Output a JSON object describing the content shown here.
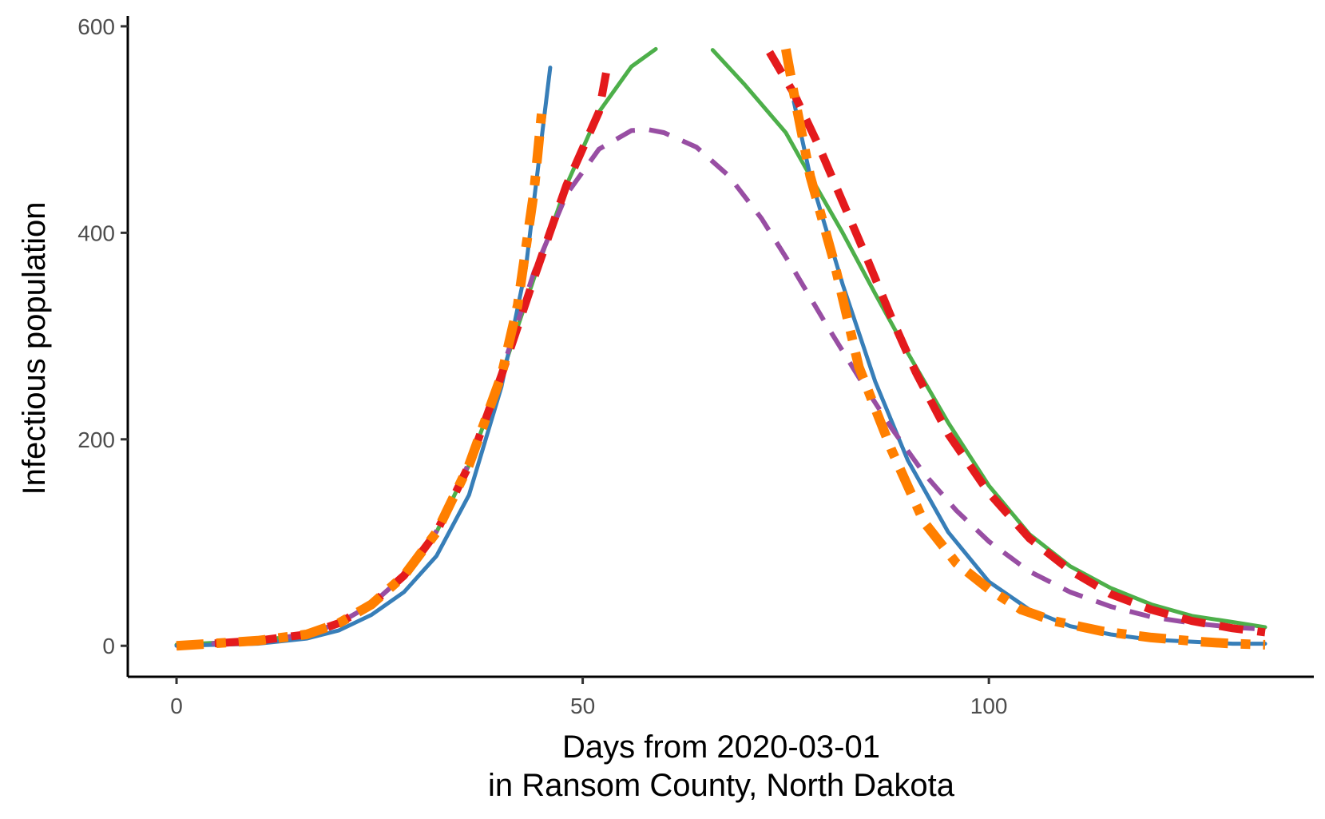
{
  "chart_data": {
    "type": "line",
    "title": "",
    "xlabel_lines": [
      "Days from 2020-03-01",
      "in Ransom County, North Dakota"
    ],
    "ylabel": "Infectious population",
    "xlim": [
      -6,
      140
    ],
    "ylim": [
      -30,
      610
    ],
    "x_ticks": [
      0,
      50,
      100
    ],
    "y_ticks": [
      0,
      200,
      400,
      600
    ],
    "grid": false,
    "legend": "none",
    "series": [
      {
        "color": "#4daf4a",
        "style": "solid",
        "width": 5,
        "segments": [
          [
            [
              0,
              1
            ],
            [
              10,
              5
            ],
            [
              16,
              11
            ],
            [
              20,
              22
            ],
            [
              24,
              40
            ],
            [
              28,
              68
            ],
            [
              32,
              110
            ],
            [
              36,
              175
            ],
            [
              40,
              262
            ],
            [
              44,
              356
            ],
            [
              48,
              446
            ],
            [
              52,
              517
            ],
            [
              56,
              561
            ],
            [
              59,
              578
            ]
          ],
          [
            [
              66,
              577
            ],
            [
              70,
              543
            ],
            [
              75,
              497
            ],
            [
              78,
              455
            ],
            [
              82,
              400
            ],
            [
              86,
              341
            ],
            [
              90,
              284
            ],
            [
              95,
              216
            ],
            [
              100,
              155
            ],
            [
              105,
              108
            ],
            [
              110,
              77
            ],
            [
              115,
              56
            ],
            [
              120,
              40
            ],
            [
              125,
              29
            ],
            [
              130,
              23
            ],
            [
              134,
              18
            ]
          ]
        ]
      },
      {
        "color": "#377eb8",
        "style": "solid",
        "width": 5,
        "segments": [
          [
            [
              0,
              0
            ],
            [
              10,
              2
            ],
            [
              16,
              7
            ],
            [
              20,
              15
            ],
            [
              24,
              30
            ],
            [
              28,
              52
            ],
            [
              32,
              87
            ],
            [
              36,
              146
            ],
            [
              40,
              251
            ],
            [
              43,
              366
            ],
            [
              46,
              560
            ]
          ],
          [
            [
              76,
              527
            ],
            [
              78,
              455
            ],
            [
              82,
              350
            ],
            [
              86,
              256
            ],
            [
              90,
              180
            ],
            [
              95,
              110
            ],
            [
              100,
              62
            ],
            [
              105,
              35
            ],
            [
              110,
              19
            ],
            [
              115,
              11
            ],
            [
              120,
              6
            ],
            [
              125,
              4
            ],
            [
              130,
              2
            ],
            [
              134,
              2
            ]
          ]
        ]
      },
      {
        "color": "#984ea3",
        "style": "dashed",
        "width": 6,
        "dash": "26 18",
        "segments": [
          [
            [
              0,
              0
            ],
            [
              10,
              5
            ],
            [
              16,
              11
            ],
            [
              20,
              22
            ],
            [
              24,
              40
            ],
            [
              28,
              68
            ],
            [
              32,
              111
            ],
            [
              36,
              177
            ],
            [
              40,
              265
            ],
            [
              44,
              362
            ],
            [
              48,
              437
            ],
            [
              52,
              481
            ],
            [
              56,
              499
            ],
            [
              58,
              500
            ],
            [
              60,
              497
            ],
            [
              64,
              483
            ],
            [
              68,
              455
            ],
            [
              72,
              414
            ],
            [
              76,
              364
            ],
            [
              80,
              311
            ],
            [
              84,
              260
            ],
            [
              88,
              211
            ],
            [
              92,
              167
            ],
            [
              96,
              131
            ],
            [
              100,
              101
            ],
            [
              105,
              72
            ],
            [
              110,
              52
            ],
            [
              115,
              38
            ],
            [
              120,
              28
            ],
            [
              125,
              22
            ],
            [
              130,
              18
            ],
            [
              134,
              16
            ]
          ]
        ]
      },
      {
        "color": "#e41a1c",
        "style": "dashed",
        "width": 10,
        "dash": "30 18",
        "segments": [
          [
            [
              0,
              0
            ],
            [
              10,
              5
            ],
            [
              16,
              11
            ],
            [
              20,
              22
            ],
            [
              24,
              40
            ],
            [
              28,
              68
            ],
            [
              32,
              110
            ],
            [
              36,
              175
            ],
            [
              40,
              262
            ],
            [
              44,
              356
            ],
            [
              48,
              446
            ],
            [
              52,
              517
            ],
            [
              53,
              560
            ]
          ],
          [
            [
              73,
              575
            ],
            [
              76,
              535
            ],
            [
              79,
              485
            ],
            [
              82,
              430
            ],
            [
              85,
              375
            ],
            [
              88,
              318
            ],
            [
              91,
              265
            ],
            [
              95,
              205
            ],
            [
              100,
              148
            ],
            [
              105,
              104
            ],
            [
              110,
              73
            ],
            [
              115,
              50
            ],
            [
              120,
              35
            ],
            [
              125,
              24
            ],
            [
              130,
              17
            ],
            [
              134,
              13
            ]
          ]
        ]
      },
      {
        "color": "#ff7f00",
        "style": "dashed",
        "width": 12,
        "dash": "34 16 12 16",
        "segments": [
          [
            [
              0,
              0
            ],
            [
              10,
              5
            ],
            [
              16,
              11
            ],
            [
              20,
              22
            ],
            [
              24,
              40
            ],
            [
              28,
              68
            ],
            [
              32,
              110
            ],
            [
              36,
              175
            ],
            [
              40,
              262
            ],
            [
              42,
              330
            ],
            [
              44,
              440
            ],
            [
              45,
              520
            ]
          ],
          [
            [
              75,
              578
            ],
            [
              76,
              535
            ],
            [
              78,
              455
            ],
            [
              81,
              370
            ],
            [
              84,
              270
            ],
            [
              88,
              190
            ],
            [
              92,
              120
            ],
            [
              96,
              80
            ],
            [
              100,
              55
            ],
            [
              104,
              35
            ],
            [
              108,
              24
            ],
            [
              114,
              14
            ],
            [
              120,
              8
            ],
            [
              126,
              4
            ],
            [
              130,
              2
            ],
            [
              134,
              1
            ]
          ]
        ]
      }
    ]
  }
}
